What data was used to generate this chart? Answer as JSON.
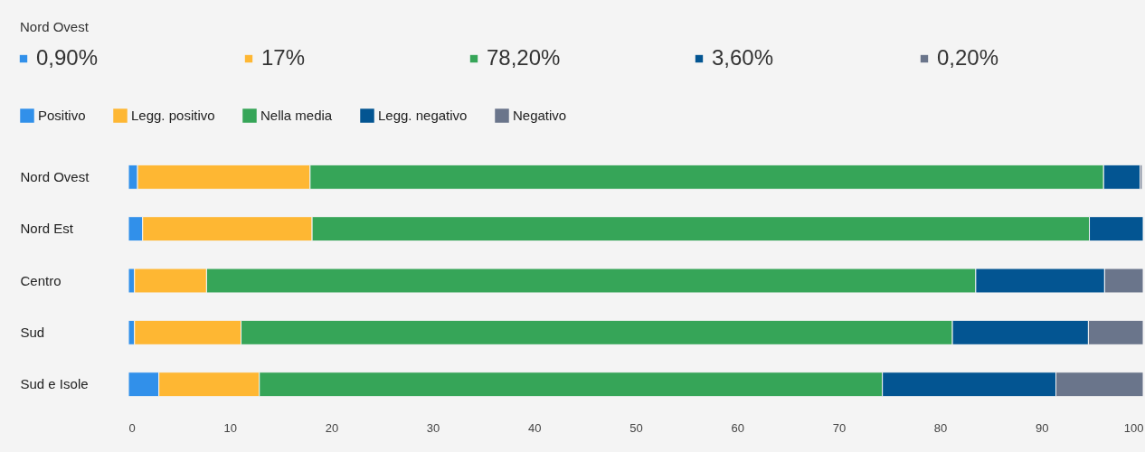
{
  "chart_data": {
    "type": "bar",
    "orientation": "horizontal",
    "stacked": true,
    "categories": [
      "Nord Ovest",
      "Nord Est",
      "Centro",
      "Sud",
      "Sud e Isole"
    ],
    "series": [
      {
        "name": "Positivo",
        "color": "#3190ea",
        "values": [
          0.9,
          1.4,
          0.6,
          0.6,
          3.0
        ]
      },
      {
        "name": "Legg. positivo",
        "color": "#feb733",
        "values": [
          17,
          16.7,
          7.1,
          10.5,
          9.9
        ]
      },
      {
        "name": "Nella media",
        "color": "#36a558",
        "values": [
          78.2,
          76.6,
          75.8,
          70.1,
          61.4
        ]
      },
      {
        "name": "Legg. negativo",
        "color": "#035592",
        "values": [
          3.6,
          5.3,
          12.7,
          13.4,
          17.1
        ]
      },
      {
        "name": "Negativo",
        "color": "#6a758b",
        "values": [
          0.2,
          null,
          3.8,
          5.4,
          8.6
        ]
      }
    ],
    "xlim": [
      0,
      100
    ],
    "xticks": [
      0,
      10,
      20,
      30,
      40,
      50,
      60,
      70,
      80,
      90,
      100
    ],
    "grid": false,
    "legend": "top left",
    "annotations": [
      "Nord Ovest",
      "0,90%",
      "17%",
      "78,20%",
      "3,60%",
      "0,20%"
    ]
  }
}
